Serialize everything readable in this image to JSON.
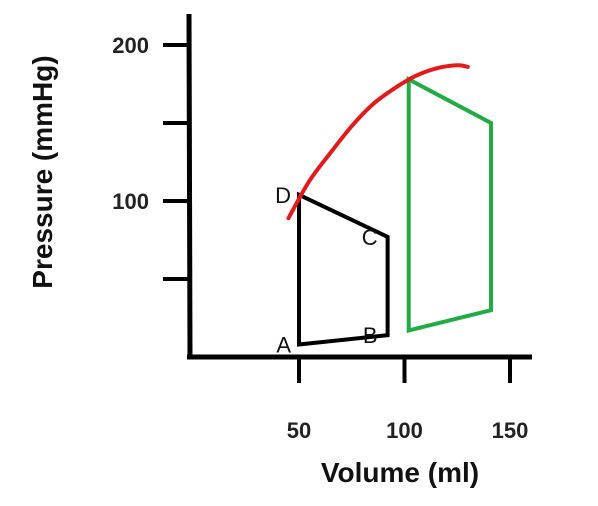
{
  "chart_data": {
    "type": "line",
    "xlabel": "Volume (ml)",
    "ylabel": "Pressure (mmHg)",
    "xlim": [
      0,
      160
    ],
    "ylim": [
      0,
      200
    ],
    "x_ticks": [
      {
        "value": 50,
        "label": "50"
      },
      {
        "value": 100,
        "label": "100"
      },
      {
        "value": 150,
        "label": "150"
      }
    ],
    "y_ticks": [
      {
        "value": 50,
        "label": ""
      },
      {
        "value": 100,
        "label": "100"
      },
      {
        "value": 150,
        "label": ""
      },
      {
        "value": 200,
        "label": "200"
      }
    ],
    "grid": false,
    "series": [
      {
        "color": "#000000",
        "closed": true,
        "points": [
          {
            "x": 50,
            "y": 8,
            "label": "A"
          },
          {
            "x": 92,
            "y": 14,
            "label": "B"
          },
          {
            "x": 92,
            "y": 77,
            "label": "C"
          },
          {
            "x": 50,
            "y": 104,
            "label": "D"
          }
        ]
      },
      {
        "color": "#22aa44",
        "closed": true,
        "points": [
          {
            "x": 102,
            "y": 17
          },
          {
            "x": 141,
            "y": 30
          },
          {
            "x": 141,
            "y": 150
          },
          {
            "x": 102,
            "y": 178
          }
        ]
      },
      {
        "color": "#e31a1c",
        "closed": false,
        "points": [
          {
            "x": 45,
            "y": 89
          },
          {
            "x": 55,
            "y": 113
          },
          {
            "x": 65,
            "y": 131
          },
          {
            "x": 75,
            "y": 148
          },
          {
            "x": 85,
            "y": 162
          },
          {
            "x": 95,
            "y": 172
          },
          {
            "x": 105,
            "y": 180
          },
          {
            "x": 115,
            "y": 185
          },
          {
            "x": 125,
            "y": 187
          },
          {
            "x": 130,
            "y": 186
          }
        ]
      }
    ]
  }
}
